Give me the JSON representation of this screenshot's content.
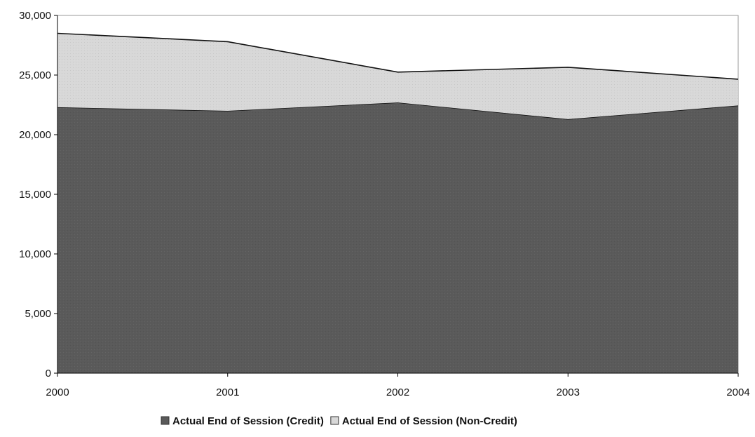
{
  "chart_data": {
    "type": "area",
    "stacked": true,
    "x": [
      "2000",
      "2001",
      "2002",
      "2003",
      "2004"
    ],
    "ylim": [
      0,
      30000
    ],
    "yticks": [
      0,
      5000,
      10000,
      15000,
      20000,
      25000,
      30000
    ],
    "ytick_labels": [
      "0",
      "5,000",
      "10,000",
      "15,000",
      "20,000",
      "25,000",
      "30,000"
    ],
    "grid": false,
    "legend_position": "bottom",
    "series": [
      {
        "name": "Actual End of Session (Credit)",
        "values": [
          22300,
          22000,
          22700,
          21300,
          22450
        ],
        "color": "#5a5a5a"
      },
      {
        "name": "Actual End of Session (Non-Credit)",
        "values": [
          6200,
          5800,
          2550,
          4350,
          2200
        ],
        "color": "#d8d8d8"
      }
    ]
  }
}
